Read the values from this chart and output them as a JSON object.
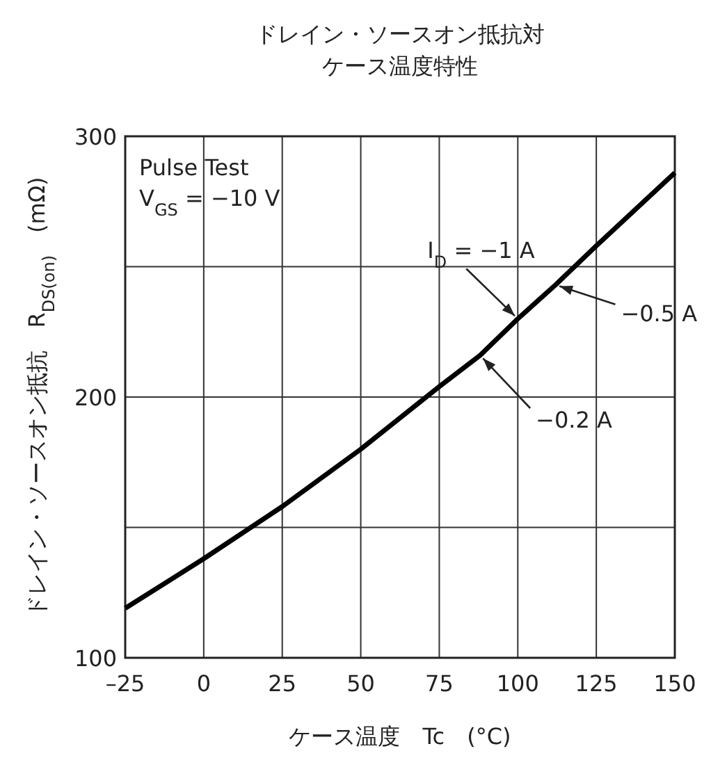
{
  "chart_data": {
    "type": "line",
    "title": "ドレイン・ソースオン抵抗対",
    "subtitle": "ケース温度特性",
    "xlabel": "ケース温度　Tc　(°C)",
    "ylabel": "ドレイン・ソースオン抵抗　R$_{DS(on)}$　(mΩ)",
    "annotations": [
      "Pulse Test",
      "V$_{GS}$ = −10 V",
      {
        "text": "I$_{D}$ = −1 A",
        "x": 100,
        "y": 230
      },
      {
        "text": "−0.5 A",
        "x": 112,
        "y": 243
      },
      {
        "text": "−0.2 A",
        "x": 88,
        "y": 216
      }
    ],
    "series": [
      {
        "color": "#000000",
        "x": [
          -25,
          0,
          25,
          50,
          75,
          88,
          100,
          112,
          125,
          150
        ],
        "values": [
          119,
          138,
          158,
          180,
          204,
          216,
          230,
          243,
          258,
          286
        ]
      }
    ],
    "xlim": [
      -25,
      150
    ],
    "ylim": [
      100,
      300
    ],
    "xticks": [
      {
        "value": -25,
        "label": "–25"
      },
      0,
      25,
      50,
      75,
      100,
      125,
      150
    ],
    "yticks": [
      100,
      {
        "value": 150,
        "label": null
      },
      200,
      {
        "value": 250,
        "label": null
      },
      300
    ],
    "grid": true,
    "marker": "none",
    "line_style": "solid"
  }
}
